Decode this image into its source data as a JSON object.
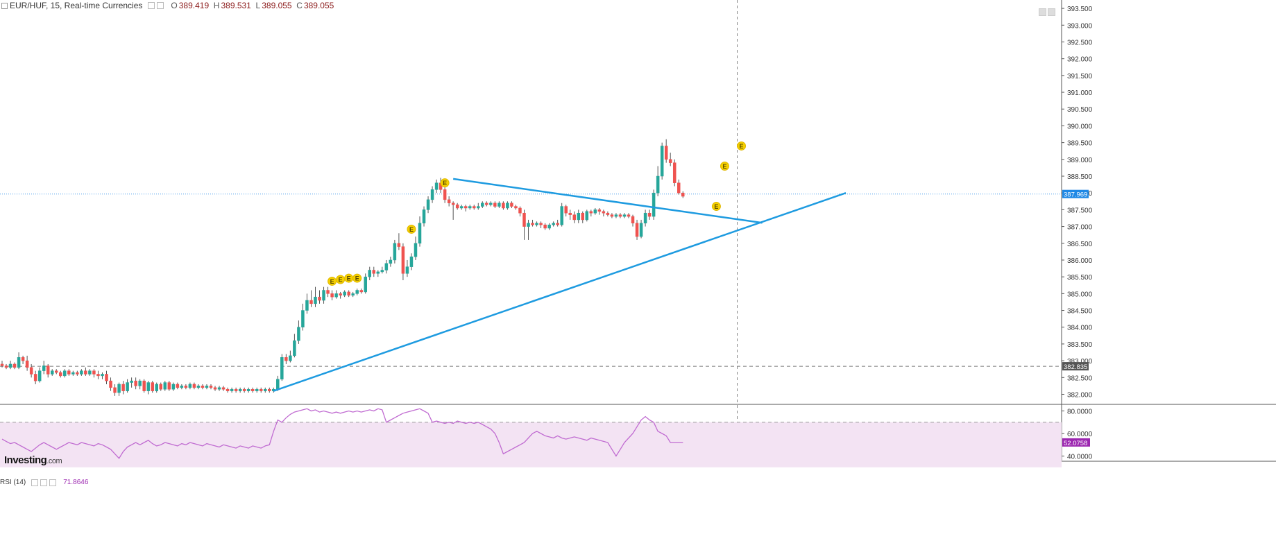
{
  "header": {
    "symbol": "EUR/HUF, 15, Real-time Currencies",
    "open_label": "O",
    "open": "389.419",
    "high_label": "H",
    "high": "389.531",
    "low_label": "L",
    "low": "389.055",
    "close_label": "C",
    "close": "389.055"
  },
  "rsi": {
    "label": "RSI (14)",
    "value": "71.8646"
  },
  "logo": {
    "main": "Investing",
    "suffix": ".com"
  },
  "colors": {
    "up": "#26a69a",
    "down": "#ef5350",
    "trendline": "#1e9be0",
    "rsi": "#c06bd1",
    "rsi_band": "#f3e3f3"
  },
  "chart_data": [
    {
      "type": "candlestick",
      "ylim": [
        381.7,
        393.75
      ],
      "y_ticks": [
        "393.500",
        "393.000",
        "392.500",
        "392.000",
        "391.500",
        "391.000",
        "390.500",
        "390.000",
        "389.500",
        "389.000",
        "388.500",
        "388.000",
        "387.500",
        "387.000",
        "386.500",
        "386.000",
        "385.500",
        "385.000",
        "384.500",
        "384.000",
        "383.500",
        "383.000",
        "382.500",
        "382.000"
      ],
      "price_markers": [
        {
          "value": 387.969,
          "label": "387.969",
          "color": "#1e88e5",
          "style": "dotted"
        },
        {
          "value": 382.835,
          "label": "382.835",
          "color": "#555555",
          "style": "dashed"
        }
      ],
      "trendlines": [
        {
          "from": {
            "bar": 65,
            "price": 382.1
          },
          "to": {
            "bar": 202,
            "price": 388.0
          }
        },
        {
          "from": {
            "bar": 108,
            "price": 388.42
          },
          "to": {
            "bar": 182,
            "price": 387.11
          }
        }
      ],
      "crosshair_bar": 176,
      "event_markers": [
        {
          "bar": 79,
          "price": 385.37,
          "label": "E"
        },
        {
          "bar": 81,
          "price": 385.42,
          "label": "E"
        },
        {
          "bar": 83,
          "price": 385.46,
          "label": "E"
        },
        {
          "bar": 85,
          "price": 385.46,
          "label": "E"
        },
        {
          "bar": 98,
          "price": 386.92,
          "label": "E"
        },
        {
          "bar": 106,
          "price": 388.3,
          "label": "E"
        },
        {
          "bar": 171,
          "price": 387.6,
          "label": "E"
        },
        {
          "bar": 173,
          "price": 388.8,
          "label": "E"
        },
        {
          "bar": 177,
          "price": 389.4,
          "label": "E"
        }
      ],
      "candles": [
        [
          382.9,
          382.85,
          383.0,
          382.8
        ],
        [
          382.85,
          382.8,
          382.9,
          382.75
        ],
        [
          382.8,
          382.9,
          383.0,
          382.75
        ],
        [
          382.9,
          382.8,
          382.95,
          382.75
        ],
        [
          382.8,
          383.1,
          383.25,
          382.75
        ],
        [
          383.1,
          383.0,
          383.15,
          382.9
        ],
        [
          383.0,
          382.8,
          383.15,
          382.7
        ],
        [
          382.8,
          382.6,
          382.9,
          382.5
        ],
        [
          382.6,
          382.4,
          382.7,
          382.3
        ],
        [
          382.4,
          382.7,
          382.8,
          382.35
        ],
        [
          382.7,
          382.85,
          383.0,
          382.6
        ],
        [
          382.85,
          382.6,
          382.9,
          382.5
        ],
        [
          382.6,
          382.7,
          382.75,
          382.55
        ],
        [
          382.7,
          382.65,
          382.75,
          382.6
        ],
        [
          382.65,
          382.55,
          382.7,
          382.5
        ],
        [
          382.55,
          382.7,
          382.75,
          382.5
        ],
        [
          382.7,
          382.6,
          382.75,
          382.55
        ],
        [
          382.6,
          382.65,
          382.7,
          382.55
        ],
        [
          382.65,
          382.6,
          382.7,
          382.55
        ],
        [
          382.6,
          382.7,
          382.75,
          382.55
        ],
        [
          382.7,
          382.6,
          382.8,
          382.55
        ],
        [
          382.6,
          382.7,
          382.75,
          382.55
        ],
        [
          382.7,
          382.6,
          382.75,
          382.5
        ],
        [
          382.6,
          382.55,
          382.7,
          382.45
        ],
        [
          382.55,
          382.6,
          382.65,
          382.45
        ],
        [
          382.6,
          382.4,
          382.7,
          382.3
        ],
        [
          382.4,
          382.2,
          382.5,
          382.1
        ],
        [
          382.2,
          382.05,
          382.3,
          381.95
        ],
        [
          382.05,
          382.3,
          382.35,
          381.95
        ],
        [
          382.3,
          382.1,
          382.4,
          382.0
        ],
        [
          382.1,
          382.35,
          382.45,
          382.05
        ],
        [
          382.35,
          382.4,
          382.5,
          382.2
        ],
        [
          382.4,
          382.25,
          382.5,
          382.15
        ],
        [
          382.25,
          382.4,
          382.45,
          382.15
        ],
        [
          382.4,
          382.1,
          382.45,
          382.05
        ],
        [
          382.1,
          382.35,
          382.4,
          382.0
        ],
        [
          382.35,
          382.1,
          382.4,
          382.05
        ],
        [
          382.1,
          382.3,
          382.35,
          382.05
        ],
        [
          382.3,
          382.15,
          382.35,
          382.1
        ],
        [
          382.15,
          382.35,
          382.4,
          382.1
        ],
        [
          382.35,
          382.15,
          382.4,
          382.1
        ],
        [
          382.15,
          382.3,
          382.35,
          382.1
        ],
        [
          382.3,
          382.2,
          382.35,
          382.15
        ],
        [
          382.2,
          382.25,
          382.3,
          382.15
        ],
        [
          382.25,
          382.2,
          382.3,
          382.15
        ],
        [
          382.2,
          382.3,
          382.35,
          382.15
        ],
        [
          382.3,
          382.2,
          382.35,
          382.15
        ],
        [
          382.2,
          382.25,
          382.3,
          382.15
        ],
        [
          382.25,
          382.2,
          382.3,
          382.15
        ],
        [
          382.2,
          382.25,
          382.3,
          382.15
        ],
        [
          382.25,
          382.2,
          382.3,
          382.15
        ],
        [
          382.2,
          382.15,
          382.25,
          382.1
        ],
        [
          382.15,
          382.2,
          382.25,
          382.1
        ],
        [
          382.2,
          382.15,
          382.25,
          382.1
        ],
        [
          382.15,
          382.1,
          382.2,
          382.05
        ],
        [
          382.1,
          382.15,
          382.2,
          382.05
        ],
        [
          382.15,
          382.1,
          382.2,
          382.05
        ],
        [
          382.1,
          382.15,
          382.2,
          382.05
        ],
        [
          382.15,
          382.1,
          382.2,
          382.05
        ],
        [
          382.1,
          382.15,
          382.2,
          382.05
        ],
        [
          382.15,
          382.1,
          382.2,
          382.05
        ],
        [
          382.1,
          382.15,
          382.2,
          382.05
        ],
        [
          382.15,
          382.1,
          382.2,
          382.05
        ],
        [
          382.1,
          382.15,
          382.2,
          382.05
        ],
        [
          382.15,
          382.1,
          382.2,
          382.05
        ],
        [
          382.1,
          382.15,
          382.2,
          382.05
        ],
        [
          382.15,
          382.45,
          382.55,
          382.1
        ],
        [
          382.45,
          383.1,
          383.2,
          382.4
        ],
        [
          383.1,
          383.0,
          383.2,
          382.9
        ],
        [
          383.0,
          383.15,
          383.3,
          382.95
        ],
        [
          383.15,
          383.6,
          383.8,
          383.1
        ],
        [
          383.6,
          384.0,
          384.2,
          383.5
        ],
        [
          384.0,
          384.5,
          384.7,
          383.9
        ],
        [
          384.5,
          384.8,
          385.0,
          384.4
        ],
        [
          384.8,
          384.7,
          385.1,
          384.6
        ],
        [
          384.7,
          384.9,
          385.2,
          384.6
        ],
        [
          384.9,
          384.8,
          385.1,
          384.7
        ],
        [
          384.8,
          385.1,
          385.2,
          384.7
        ],
        [
          385.1,
          385.0,
          385.2,
          384.9
        ],
        [
          385.0,
          384.9,
          385.1,
          384.8
        ],
        [
          384.9,
          385.0,
          385.1,
          384.85
        ],
        [
          385.0,
          384.95,
          385.05,
          384.85
        ],
        [
          384.95,
          385.05,
          385.1,
          384.9
        ],
        [
          385.05,
          384.95,
          385.1,
          384.9
        ],
        [
          384.95,
          385.0,
          385.05,
          384.9
        ],
        [
          385.0,
          385.1,
          385.15,
          384.95
        ],
        [
          385.1,
          385.05,
          385.15,
          385.0
        ],
        [
          385.05,
          385.5,
          385.6,
          385.0
        ],
        [
          385.5,
          385.7,
          385.8,
          385.4
        ],
        [
          385.7,
          385.6,
          385.8,
          385.5
        ],
        [
          385.6,
          385.65,
          385.7,
          385.5
        ],
        [
          385.65,
          385.7,
          385.8,
          385.6
        ],
        [
          385.7,
          385.9,
          386.0,
          385.6
        ],
        [
          385.9,
          386.0,
          386.1,
          385.8
        ],
        [
          386.0,
          386.5,
          386.6,
          385.9
        ],
        [
          386.5,
          386.4,
          386.8,
          386.3
        ],
        [
          386.4,
          385.6,
          386.5,
          385.4
        ],
        [
          385.6,
          385.8,
          386.0,
          385.5
        ],
        [
          385.8,
          386.1,
          386.2,
          385.7
        ],
        [
          386.1,
          386.5,
          386.7,
          386.0
        ],
        [
          386.5,
          387.1,
          387.3,
          386.4
        ],
        [
          387.1,
          387.5,
          387.6,
          387.0
        ],
        [
          387.5,
          387.8,
          387.9,
          387.4
        ],
        [
          387.8,
          388.1,
          388.2,
          387.7
        ],
        [
          388.1,
          388.3,
          388.4,
          388.0
        ],
        [
          388.3,
          388.1,
          388.45,
          388.0
        ],
        [
          388.1,
          387.8,
          388.2,
          387.7
        ],
        [
          387.8,
          387.7,
          387.9,
          387.6
        ],
        [
          387.7,
          387.65,
          387.75,
          387.2
        ],
        [
          387.65,
          387.55,
          387.7,
          387.5
        ],
        [
          387.55,
          387.6,
          387.65,
          387.5
        ],
        [
          387.6,
          387.55,
          387.65,
          387.45
        ],
        [
          387.55,
          387.6,
          387.65,
          387.5
        ],
        [
          387.6,
          387.55,
          387.65,
          387.5
        ],
        [
          387.55,
          387.6,
          387.7,
          387.5
        ],
        [
          387.6,
          387.7,
          387.75,
          387.55
        ],
        [
          387.7,
          387.65,
          387.75,
          387.6
        ],
        [
          387.65,
          387.7,
          387.75,
          387.6
        ],
        [
          387.7,
          387.6,
          387.75,
          387.55
        ],
        [
          387.6,
          387.7,
          387.75,
          387.55
        ],
        [
          387.7,
          387.55,
          387.75,
          387.5
        ],
        [
          387.55,
          387.7,
          387.75,
          387.5
        ],
        [
          387.7,
          387.6,
          387.75,
          387.55
        ],
        [
          387.6,
          387.55,
          387.65,
          387.5
        ],
        [
          387.55,
          387.4,
          387.6,
          387.3
        ],
        [
          387.4,
          387.0,
          387.5,
          386.6
        ],
        [
          387.0,
          387.1,
          387.2,
          386.6
        ],
        [
          387.1,
          387.05,
          387.2,
          387.0
        ],
        [
          387.05,
          387.1,
          387.15,
          387.0
        ],
        [
          387.1,
          387.05,
          387.15,
          386.95
        ],
        [
          387.05,
          386.95,
          387.1,
          386.9
        ],
        [
          386.95,
          387.05,
          387.1,
          386.9
        ],
        [
          387.05,
          387.1,
          387.15,
          387.0
        ],
        [
          387.1,
          387.05,
          387.2,
          387.0
        ],
        [
          387.05,
          387.6,
          387.7,
          387.0
        ],
        [
          387.6,
          387.4,
          387.65,
          387.3
        ],
        [
          387.4,
          387.35,
          387.5,
          387.2
        ],
        [
          387.35,
          387.2,
          387.45,
          387.1
        ],
        [
          387.2,
          387.4,
          387.5,
          387.1
        ],
        [
          387.4,
          387.2,
          387.45,
          387.1
        ],
        [
          387.2,
          387.45,
          387.5,
          387.15
        ],
        [
          387.45,
          387.4,
          387.5,
          387.3
        ],
        [
          387.4,
          387.5,
          387.55,
          387.35
        ],
        [
          387.5,
          387.45,
          387.55,
          387.35
        ],
        [
          387.45,
          387.4,
          387.5,
          387.3
        ],
        [
          387.4,
          387.35,
          387.45,
          387.3
        ],
        [
          387.35,
          387.3,
          387.4,
          387.25
        ],
        [
          387.3,
          387.35,
          387.4,
          387.25
        ],
        [
          387.35,
          387.3,
          387.4,
          387.25
        ],
        [
          387.3,
          387.35,
          387.4,
          387.25
        ],
        [
          387.35,
          387.3,
          387.4,
          387.25
        ],
        [
          387.3,
          387.1,
          387.35,
          387.0
        ],
        [
          387.1,
          386.7,
          387.2,
          386.6
        ],
        [
          386.7,
          387.1,
          387.2,
          386.65
        ],
        [
          387.1,
          387.4,
          387.5,
          387.0
        ],
        [
          387.4,
          387.3,
          387.5,
          387.2
        ],
        [
          387.3,
          388.0,
          388.1,
          387.2
        ],
        [
          388.0,
          388.5,
          388.8,
          387.9
        ],
        [
          388.5,
          389.4,
          389.5,
          388.4
        ],
        [
          389.4,
          389.0,
          389.6,
          388.9
        ],
        [
          389.0,
          388.9,
          389.2,
          388.8
        ],
        [
          388.9,
          388.3,
          389.0,
          388.2
        ],
        [
          388.3,
          388.0,
          388.4,
          387.95
        ],
        [
          388.0,
          387.9,
          388.05,
          387.85
        ]
      ]
    },
    {
      "type": "line",
      "name": "RSI (14)",
      "ylim": [
        36,
        84
      ],
      "y_ticks": [
        "80.0000",
        "60.0000",
        "40.0000"
      ],
      "bands": [
        70,
        30
      ],
      "value_marker": "52.0758",
      "values": [
        55,
        53,
        51,
        52,
        50,
        48,
        46,
        44,
        47,
        50,
        52,
        50,
        48,
        46,
        48,
        50,
        52,
        51,
        50,
        52,
        51,
        50,
        49,
        51,
        50,
        48,
        46,
        42,
        38,
        44,
        48,
        50,
        52,
        50,
        52,
        54,
        51,
        49,
        50,
        52,
        51,
        50,
        49,
        51,
        50,
        52,
        51,
        50,
        49,
        51,
        50,
        49,
        48,
        50,
        49,
        48,
        47,
        49,
        48,
        47,
        49,
        48,
        47,
        49,
        50,
        62,
        72,
        70,
        74,
        77,
        79,
        80,
        81,
        82,
        80,
        81,
        79,
        80,
        79,
        78,
        79,
        78,
        79,
        80,
        79,
        80,
        79,
        80,
        81,
        80,
        82,
        81,
        70,
        72,
        74,
        76,
        78,
        79,
        80,
        81,
        82,
        80,
        78,
        70,
        71,
        70,
        69,
        70,
        69,
        71,
        70,
        69,
        70,
        69,
        70,
        68,
        66,
        64,
        60,
        52,
        42,
        44,
        46,
        48,
        50,
        52,
        56,
        60,
        62,
        60,
        58,
        57,
        56,
        58,
        56,
        55,
        56,
        57,
        56,
        55,
        54,
        56,
        55,
        54,
        53,
        52,
        46,
        40,
        46,
        52,
        56,
        60,
        66,
        72,
        75,
        72,
        70,
        62,
        60,
        58,
        52,
        52,
        52,
        52
      ]
    }
  ]
}
